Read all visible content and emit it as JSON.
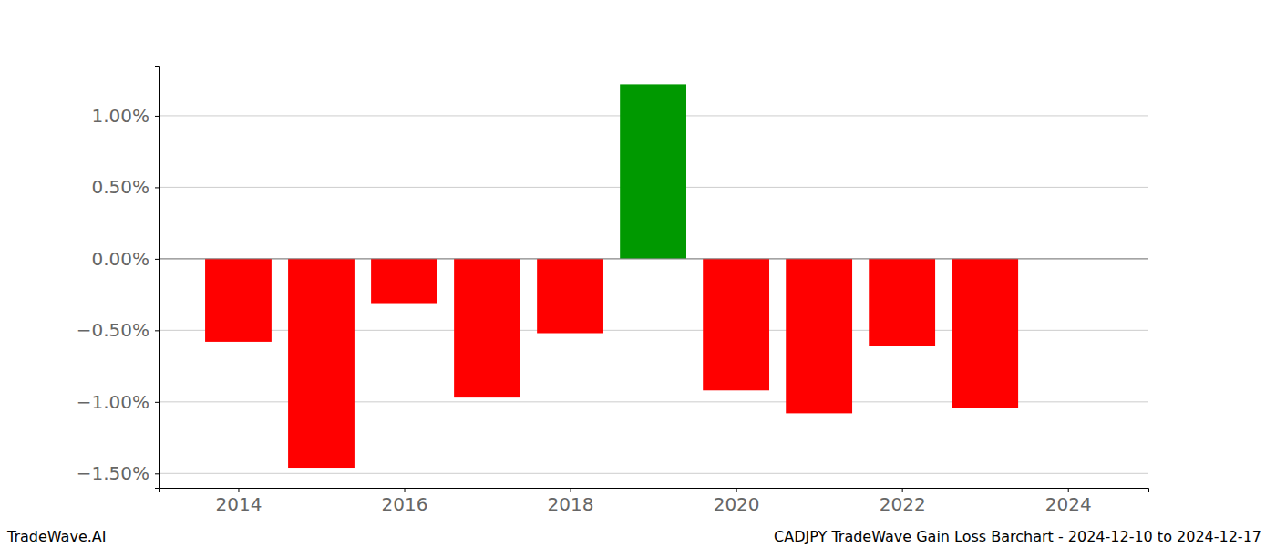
{
  "chart_data": {
    "type": "bar",
    "title": "CADJPY TradeWave Gain Loss Barchart - 2024-12-10 to 2024-12-17",
    "annotations": [
      "TradeWave.AI"
    ],
    "x": [
      2014,
      2015,
      2016,
      2017,
      2018,
      2019,
      2020,
      2021,
      2022,
      2023
    ],
    "values": [
      -0.58,
      -1.46,
      -0.31,
      -0.97,
      -0.52,
      1.22,
      -0.92,
      -1.08,
      -0.61,
      -1.04
    ],
    "colors": [
      "#ff0000",
      "#ff0000",
      "#ff0000",
      "#ff0000",
      "#ff0000",
      "#009900",
      "#ff0000",
      "#ff0000",
      "#ff0000",
      "#ff0000"
    ],
    "xlim": [
      2013.05,
      2024.97
    ],
    "xticks": [
      2014,
      2016,
      2018,
      2020,
      2022,
      2024
    ],
    "ylim": [
      -1.6,
      1.35
    ],
    "yticks": [
      {
        "value": -1.5,
        "label": "−1.50%"
      },
      {
        "value": -1,
        "label": "−1.00%"
      },
      {
        "value": -0.5,
        "label": "−0.50%"
      },
      {
        "value": 0,
        "label": "0.00%"
      },
      {
        "value": 0.5,
        "label": "0.50%"
      },
      {
        "value": 1,
        "label": "1.00%"
      }
    ],
    "grid": true
  }
}
